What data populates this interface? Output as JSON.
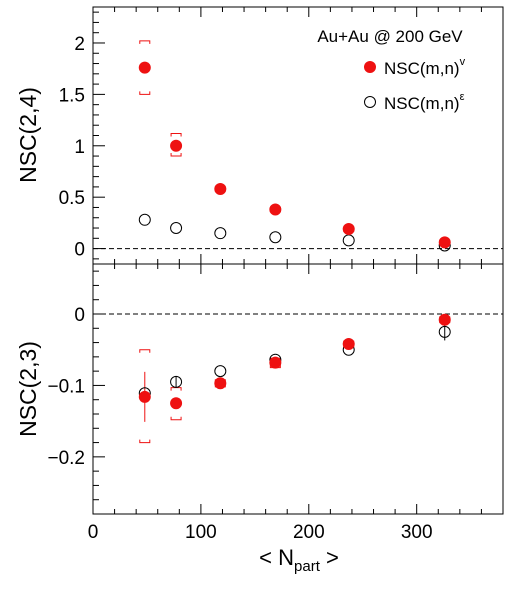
{
  "colors": {
    "signal": "#ee1111",
    "model": "#000000",
    "reference_line": "#000000"
  },
  "chart_data": [
    {
      "type": "scatter",
      "title": "",
      "annotation": "Au+Au @ 200 GeV",
      "xlabel_main": "< N",
      "xlabel_sub": "part",
      "xlabel_end": " >",
      "ylabel": "NSC(2,4)",
      "xlim": [
        0,
        380
      ],
      "ylim": [
        -0.15,
        2.35
      ],
      "yticks": [
        0,
        0.5,
        1,
        1.5,
        2
      ],
      "ytick_labels": [
        "0",
        "0.5",
        "1",
        "1.5",
        "2"
      ],
      "reference_line_y": 0,
      "grid": false,
      "legend_placement": "top-right",
      "series": [
        {
          "name_main": "NSC(m,n)",
          "name_sup": "v",
          "marker": "filled-circle",
          "color": "#ee1111",
          "x": [
            48,
            77,
            118,
            169,
            237,
            326
          ],
          "y": [
            1.76,
            1.0,
            0.58,
            0.38,
            0.19,
            0.06
          ],
          "yerr": [
            0.05,
            0.04,
            0.03,
            0.02,
            0.02,
            0.02
          ],
          "syst_low": [
            1.5,
            0.9,
            0.56,
            0.36,
            0.17,
            0.04
          ],
          "syst_high": [
            2.02,
            1.12,
            0.6,
            0.4,
            0.21,
            0.08
          ]
        },
        {
          "name_main": "NSC(m,n)",
          "name_sup": "ε",
          "marker": "open-circle",
          "color": "#000000",
          "x": [
            48,
            77,
            118,
            169,
            237,
            326
          ],
          "y": [
            0.28,
            0.2,
            0.15,
            0.11,
            0.08,
            0.03
          ],
          "yerr": [
            0.0,
            0.0,
            0.0,
            0.0,
            0.0,
            0.0
          ]
        }
      ]
    },
    {
      "type": "scatter",
      "title": "",
      "xlabel_main": "< N",
      "xlabel_sub": "part",
      "xlabel_end": " >",
      "ylabel": "NSC(2,3)",
      "xlim": [
        0,
        380
      ],
      "ylim": [
        -0.28,
        0.07
      ],
      "xticks": [
        0,
        100,
        200,
        300
      ],
      "xtick_labels": [
        "0",
        "100",
        "200",
        "300"
      ],
      "yticks": [
        0,
        -0.1,
        -0.2
      ],
      "ytick_labels": [
        "0",
        "−0.1",
        "−0.2"
      ],
      "reference_line_y": 0,
      "grid": false,
      "series": [
        {
          "name_main": "NSC(m,n)",
          "name_sup": "v",
          "marker": "filled-circle",
          "color": "#ee1111",
          "x": [
            48,
            77,
            118,
            169,
            237,
            326
          ],
          "y": [
            -0.116,
            -0.125,
            -0.097,
            -0.068,
            -0.042,
            -0.008
          ],
          "yerr": [
            0.035,
            0.005,
            0.004,
            0.004,
            0.003,
            0.003
          ],
          "syst_low": [
            -0.18,
            -0.148,
            -0.102,
            -0.075,
            -0.046,
            -0.012
          ],
          "syst_high": [
            -0.05,
            -0.103,
            -0.092,
            -0.062,
            -0.038,
            -0.004
          ]
        },
        {
          "name_main": "NSC(m,n)",
          "name_sup": "ε",
          "marker": "open-circle",
          "color": "#000000",
          "x": [
            48,
            77,
            118,
            169,
            237,
            326
          ],
          "y": [
            -0.111,
            -0.095,
            -0.08,
            -0.064,
            -0.05,
            -0.025
          ],
          "yerr": [
            0.0,
            0.008,
            0.0,
            0.0,
            0.0,
            0.012
          ]
        }
      ]
    }
  ]
}
